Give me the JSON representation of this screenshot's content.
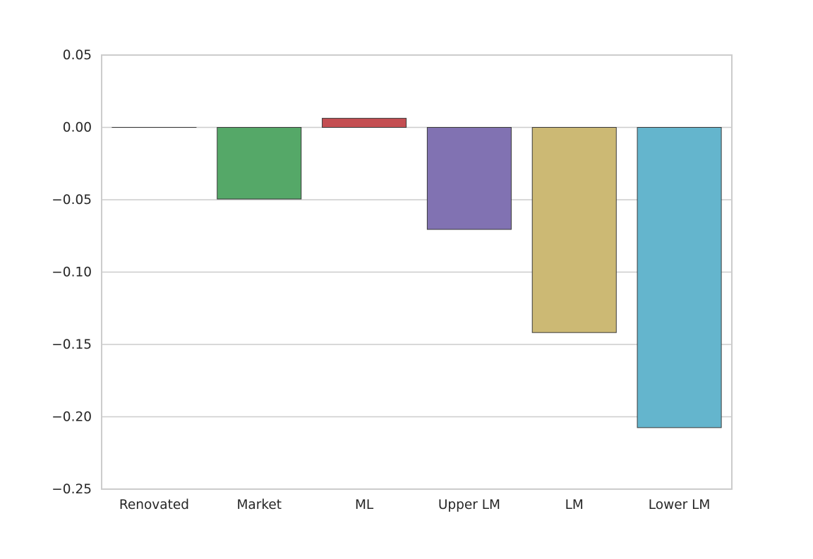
{
  "chart_data": {
    "type": "bar",
    "title": "",
    "xlabel": "",
    "ylabel": "",
    "categories": [
      "Renovated",
      "Market",
      "ML",
      "Upper LM",
      "LM",
      "Lower LM"
    ],
    "values": [
      0.0,
      -0.0495,
      0.0063,
      -0.0705,
      -0.1418,
      -0.2075
    ],
    "colors": [
      "#4c72b0",
      "#55a868",
      "#c44e52",
      "#8172b2",
      "#ccb974",
      "#64b5cd"
    ],
    "ylim": [
      -0.25,
      0.05
    ],
    "yticks": [
      0.05,
      0.0,
      -0.05,
      -0.1,
      -0.15,
      -0.2,
      -0.25
    ],
    "ytick_labels": [
      "0.05",
      "0.00",
      "−0.05",
      "−0.10",
      "−0.15",
      "−0.20",
      "−0.25"
    ],
    "grid": "horizontal",
    "legend": "none"
  }
}
